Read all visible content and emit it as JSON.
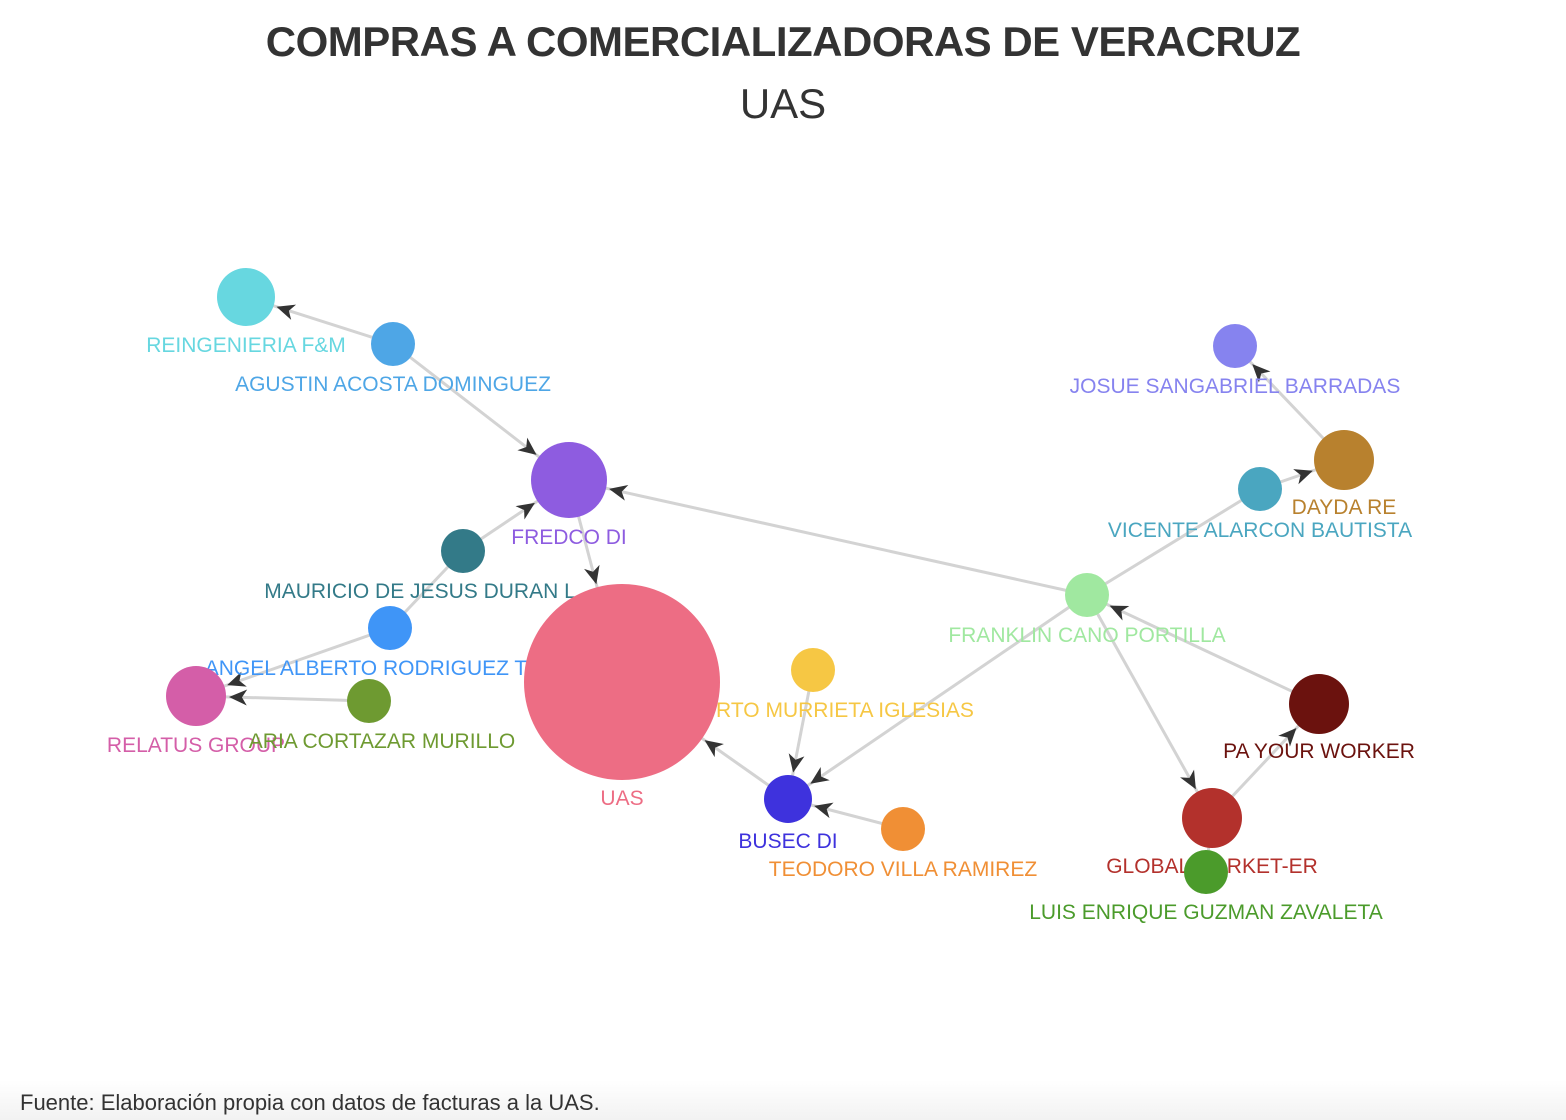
{
  "title": "COMPRAS A COMERCIALIZADORAS DE VERACRUZ",
  "subtitle": "UAS",
  "footer": "Fuente: Elaboración propia con datos de facturas a la UAS.",
  "nodes": [
    {
      "id": "reingenieria",
      "label": "REINGENIERIA F&M",
      "color": "#67d7e0"
    },
    {
      "id": "agustin",
      "label": "AGUSTIN ACOSTA DOMINGUEZ",
      "color": "#4ea6e6"
    },
    {
      "id": "fredco",
      "label": "FREDCO DI",
      "color": "#8e5ce0"
    },
    {
      "id": "mauricio",
      "label": "MAURICIO DE JESUS DURAN L",
      "color": "#337a88"
    },
    {
      "id": "angel",
      "label": "ANGEL ALBERTO RODRIGUEZ T",
      "color": "#3f95f7"
    },
    {
      "id": "relatus",
      "label": "RELATUS GROUP",
      "color": "#d45ea8"
    },
    {
      "id": "maria",
      "label": "ARIA CORTAZAR MURILLO",
      "color": "#6e9a31"
    },
    {
      "id": "murrieta",
      "label": "RTO MURRIETA IGLESIAS",
      "color": "#f6c744"
    },
    {
      "id": "busec",
      "label": "BUSEC DI",
      "color": "#3e32dd"
    },
    {
      "id": "teodoro",
      "label": "TEODORO VILLA RAMIREZ",
      "color": "#f08f35"
    },
    {
      "id": "franklin",
      "label": "FRANKLIN CANO PORTILLA",
      "color": "#a0e8a0"
    },
    {
      "id": "vicente",
      "label": "VICENTE ALARCON BAUTISTA",
      "color": "#4aa6c0"
    },
    {
      "id": "dayda",
      "label": "DAYDA RE",
      "color": "#b8812e"
    },
    {
      "id": "josue",
      "label": "JOSUE SANGABRIEL BARRADAS",
      "color": "#8683ef"
    },
    {
      "id": "pa",
      "label": "PA YOUR WORKER",
      "color": "#6b120e"
    },
    {
      "id": "global",
      "label": "GLOBAL MARKET-ER",
      "color": "#b3312c"
    },
    {
      "id": "luis",
      "label": "LUIS ENRIQUE GUZMAN ZAVALETA",
      "color": "#4b9b2b"
    },
    {
      "id": "uas",
      "label": "UAS",
      "color": "#ed6d84"
    }
  ],
  "edges": [
    {
      "from": "agustin",
      "to": "reingenieria",
      "arrow": true
    },
    {
      "from": "agustin",
      "to": "fredco",
      "arrow": true
    },
    {
      "from": "fredco",
      "to": "uas",
      "arrow": true
    },
    {
      "from": "mauricio",
      "to": "fredco",
      "arrow": true
    },
    {
      "from": "angel",
      "to": "mauricio",
      "arrow": false
    },
    {
      "from": "angel",
      "to": "relatus",
      "arrow": true
    },
    {
      "from": "maria",
      "to": "relatus",
      "arrow": true
    },
    {
      "from": "franklin",
      "to": "fredco",
      "arrow": true
    },
    {
      "from": "franklin",
      "to": "vicente",
      "arrow": false
    },
    {
      "from": "vicente",
      "to": "dayda",
      "arrow": true
    },
    {
      "from": "dayda",
      "to": "josue",
      "arrow": true
    },
    {
      "from": "franklin",
      "to": "busec",
      "arrow": true
    },
    {
      "from": "franklin",
      "to": "global",
      "arrow": true
    },
    {
      "from": "pa",
      "to": "franklin",
      "arrow": true
    },
    {
      "from": "global",
      "to": "pa",
      "arrow": true
    },
    {
      "from": "murrieta",
      "to": "busec",
      "arrow": true
    },
    {
      "from": "teodoro",
      "to": "busec",
      "arrow": true
    },
    {
      "from": "busec",
      "to": "uas",
      "arrow": true
    },
    {
      "from": "luis",
      "to": "global",
      "arrow": false
    }
  ]
}
